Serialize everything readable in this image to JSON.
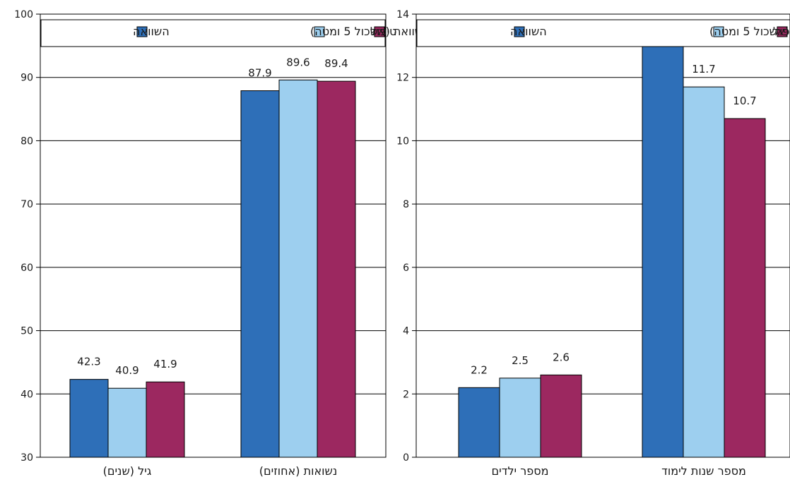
{
  "colors": {
    "series_1": "#2e6fb8",
    "series_2": "#9dcfef",
    "series_3": "#9c2860",
    "gridline": "#000000",
    "axis": "#000000"
  },
  "legend_labels": [
    "השוואה",
    "השוואה (אשכול 5 ומטה)",
    "טיפול"
  ],
  "chart_data": [
    {
      "type": "bar",
      "title": "",
      "xlabel": "",
      "ylabel": "",
      "categories": [
        "נשואות (אחוזים)",
        "גיל (שנים)"
      ],
      "series": [
        {
          "name": "השוואה",
          "values": [
            87.9,
            42.3
          ]
        },
        {
          "name": "השוואה (אשכול 5 ומטה)",
          "values": [
            89.6,
            40.9
          ]
        },
        {
          "name": "טיפול",
          "values": [
            89.4,
            41.9
          ]
        }
      ],
      "ylim": [
        30,
        100
      ],
      "yticks": [
        "30",
        "40",
        "50",
        "60",
        "70",
        "80",
        "90",
        "100"
      ],
      "data_labels": [
        [
          "87.9",
          "89.6",
          "89.4"
        ],
        [
          "42.3",
          "40.9",
          "41.9"
        ]
      ],
      "grid": true,
      "legend": "top"
    },
    {
      "type": "bar",
      "title": "",
      "xlabel": "",
      "ylabel": "",
      "categories": [
        "מספר שנות לימוד",
        "מספר ילדים"
      ],
      "series": [
        {
          "name": "השוואה",
          "values": [
            13.1,
            2.2
          ]
        },
        {
          "name": "השוואה (אשכול 5 ומטה)",
          "values": [
            11.7,
            2.5
          ]
        },
        {
          "name": "טיפול",
          "values": [
            10.7,
            2.6
          ]
        }
      ],
      "ylim": [
        0,
        14
      ],
      "yticks": [
        "0",
        "2",
        "4",
        "6",
        "8",
        "10",
        "12",
        "14"
      ],
      "data_labels": [
        [
          "13.1",
          "11.7",
          "10.7"
        ],
        [
          "2.2",
          "2.5",
          "2.6"
        ]
      ],
      "grid": true,
      "legend": "top"
    }
  ]
}
